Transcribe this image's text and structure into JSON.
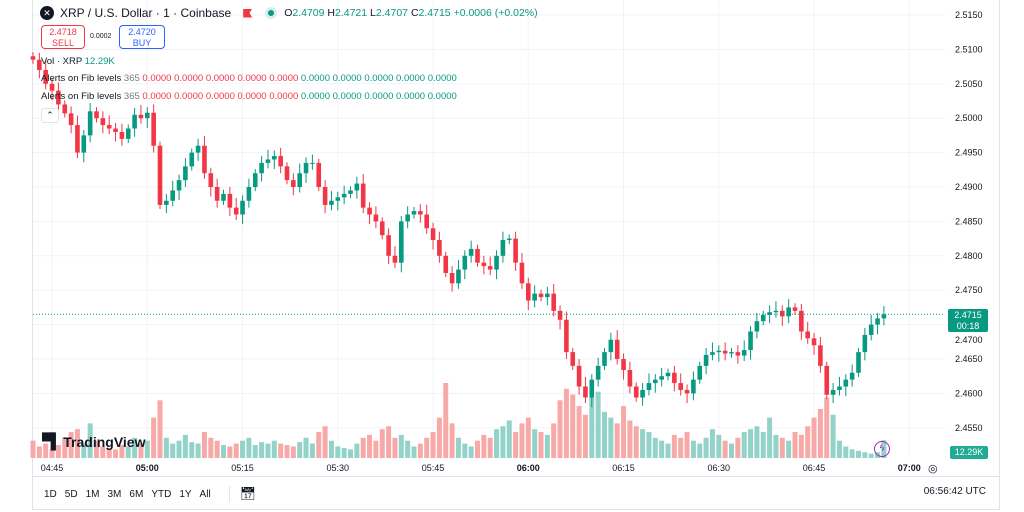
{
  "header": {
    "symbol": "XRP / U.S. Dollar · 1 · Coinbase",
    "logo_icon": "x-logo-icon",
    "open_label": "O",
    "open": "2.4709",
    "high_label": "H",
    "high": "2.4721",
    "low_label": "L",
    "low": "2.4707",
    "close_label": "C",
    "close": "2.4715",
    "change": "+0.0006 (+0.02%)"
  },
  "trade": {
    "sell_price": "2.4718",
    "sell_label": "SELL",
    "spread": "0.0002",
    "buy_price": "2.4720",
    "buy_label": "BUY"
  },
  "legend": {
    "vol_label": "Vol · XRP",
    "vol_value": "12.29K",
    "fib_rows": [
      {
        "name": "Alerts on Fib levels",
        "param": "365",
        "values": [
          "0.0000",
          "0.0000",
          "0.0000",
          "0.0000",
          "0.0000",
          "0.0000",
          "0.0000",
          "0.0000",
          "0.0000",
          "0.0000"
        ]
      },
      {
        "name": "Alerts on Fib levels",
        "param": "365",
        "values": [
          "0.0000",
          "0.0000",
          "0.0000",
          "0.0000",
          "0.0000",
          "0.0000",
          "0.0000",
          "0.0000",
          "0.0000",
          "0.0000"
        ]
      }
    ],
    "collapse_icon": "chevron-up-icon"
  },
  "brand": "TradingView",
  "price_tag": {
    "price": "2.4715",
    "countdown": "00:18"
  },
  "volume_tag": "12.29K",
  "price_axis": [
    "2.5150",
    "2.5100",
    "2.5050",
    "2.5000",
    "2.4950",
    "2.4900",
    "2.4850",
    "2.4800",
    "2.4750",
    "2.4700",
    "2.4650",
    "2.4600",
    "2.4550"
  ],
  "time_axis": [
    {
      "label": "04:45",
      "bold": false
    },
    {
      "label": "05:00",
      "bold": true
    },
    {
      "label": "05:15",
      "bold": false
    },
    {
      "label": "05:30",
      "bold": false
    },
    {
      "label": "05:45",
      "bold": false
    },
    {
      "label": "06:00",
      "bold": true
    },
    {
      "label": "06:15",
      "bold": false
    },
    {
      "label": "06:30",
      "bold": false
    },
    {
      "label": "06:45",
      "bold": false
    },
    {
      "label": "07:00",
      "bold": true
    }
  ],
  "ranges": [
    "1D",
    "5D",
    "1M",
    "3M",
    "6M",
    "YTD",
    "1Y",
    "All"
  ],
  "clock": "06:56:42 UTC",
  "colors": {
    "up": "#089981",
    "down": "#f23645",
    "vol_up": "#92d2c8",
    "vol_down": "#f7a9a7"
  },
  "chart_data": {
    "type": "candlestick",
    "interval": "1 minute",
    "start_time": "04:42",
    "ylim": [
      2.4525,
      2.517
    ],
    "close": [
      2.5085,
      2.507,
      2.505,
      2.504,
      2.502,
      2.5007,
      2.499,
      2.495,
      2.4975,
      2.501,
      2.5,
      2.499,
      2.4985,
      2.498,
      2.497,
      2.4985,
      2.5005,
      2.5,
      2.5008,
      2.496,
      2.4874,
      2.488,
      2.4895,
      2.491,
      2.493,
      2.495,
      2.496,
      2.492,
      2.49,
      2.488,
      2.489,
      2.487,
      2.486,
      2.488,
      2.49,
      2.492,
      2.4935,
      2.494,
      2.4945,
      2.493,
      2.491,
      2.49,
      2.492,
      2.4935,
      2.4935,
      2.49,
      2.4874,
      2.488,
      2.4885,
      2.489,
      2.4895,
      2.4905,
      2.487,
      2.486,
      2.485,
      2.483,
      2.48,
      2.479,
      2.485,
      2.486,
      2.4865,
      2.486,
      2.484,
      2.4823,
      2.48,
      2.4775,
      2.476,
      2.478,
      2.48,
      2.481,
      2.479,
      2.4785,
      2.478,
      2.48,
      2.4823,
      2.4825,
      2.479,
      2.476,
      2.4735,
      2.4745,
      2.474,
      2.4745,
      2.472,
      2.4707,
      2.466,
      2.464,
      2.461,
      2.4594,
      2.462,
      2.464,
      2.466,
      2.4678,
      2.465,
      2.4634,
      2.461,
      2.4594,
      2.4605,
      2.4615,
      2.462,
      2.4625,
      2.463,
      2.4615,
      2.4605,
      2.46,
      2.462,
      2.464,
      2.4656,
      2.466,
      2.4662,
      2.4658,
      2.466,
      2.4655,
      2.4663,
      2.469,
      2.4705,
      2.4714,
      2.4718,
      2.472,
      2.4712,
      2.4725,
      2.472,
      2.469,
      2.468,
      2.467,
      2.464,
      2.4598,
      2.4605,
      2.461,
      2.462,
      2.463,
      2.466,
      2.4685,
      2.47,
      2.4709,
      2.4715
    ],
    "volume_k": [
      12,
      8,
      10,
      6,
      9,
      14,
      18,
      20,
      10,
      24,
      12,
      8,
      7,
      6,
      9,
      8,
      14,
      10,
      12,
      28,
      40,
      14,
      10,
      12,
      16,
      11,
      10,
      18,
      14,
      12,
      9,
      8,
      10,
      12,
      14,
      9,
      11,
      10,
      12,
      10,
      9,
      8,
      11,
      14,
      10,
      18,
      22,
      12,
      8,
      7,
      6,
      10,
      14,
      16,
      12,
      20,
      22,
      14,
      16,
      12,
      8,
      10,
      14,
      18,
      28,
      52,
      24,
      14,
      10,
      8,
      12,
      16,
      14,
      20,
      22,
      26,
      18,
      24,
      28,
      20,
      18,
      16,
      24,
      40,
      48,
      44,
      36,
      30,
      42,
      46,
      32,
      28,
      24,
      36,
      26,
      22,
      20,
      18,
      14,
      12,
      10,
      16,
      14,
      18,
      12,
      10,
      14,
      20,
      16,
      12,
      10,
      14,
      18,
      20,
      22,
      18,
      28,
      16,
      14,
      12,
      18,
      16,
      22,
      28,
      34,
      42,
      30,
      12,
      8,
      6,
      5,
      4,
      3,
      4,
      12.29
    ]
  }
}
